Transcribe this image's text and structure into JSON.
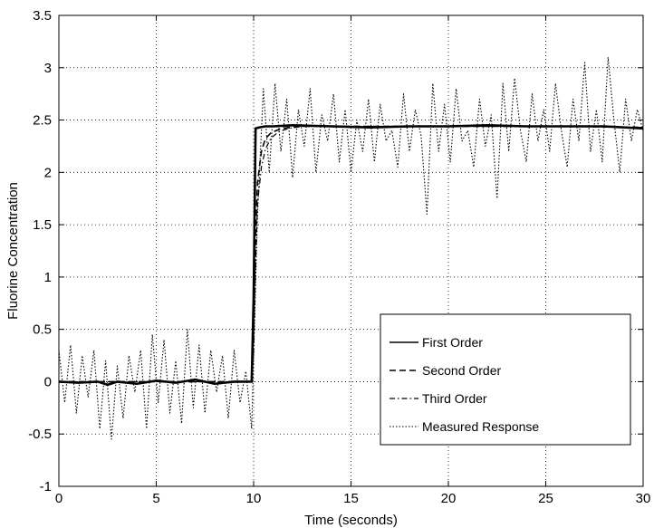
{
  "chart_data": {
    "type": "line",
    "title": "",
    "xlabel": "Time (seconds)",
    "ylabel": "Fluorine Concentration",
    "xlim": [
      0,
      30
    ],
    "ylim": [
      -1,
      3.5
    ],
    "x_ticks": [
      0,
      5,
      10,
      15,
      20,
      25,
      30
    ],
    "y_ticks": [
      -1,
      -0.5,
      0,
      0.5,
      1,
      1.5,
      2,
      2.5,
      3,
      3.5
    ],
    "x_tick_labels": [
      "0",
      "5",
      "10",
      "15",
      "20",
      "25",
      "30"
    ],
    "y_tick_labels": [
      "-1",
      "-0.5",
      "0",
      "0.5",
      "1",
      "1.5",
      "2",
      "2.5",
      "3",
      "3.5"
    ],
    "grid": true,
    "legend_position": "bottom-right",
    "series": [
      {
        "name": "First Order",
        "style": "solid",
        "x": [
          0,
          1,
          2,
          2.5,
          3,
          4,
          5,
          6,
          7,
          8,
          9,
          9.9,
          10.0,
          10.1,
          10.3,
          10.6,
          11,
          12,
          14,
          16,
          18,
          20,
          22,
          24,
          26,
          28,
          30
        ],
        "values": [
          0,
          -0.01,
          0,
          -0.03,
          0,
          -0.02,
          0.01,
          -0.01,
          0.02,
          -0.02,
          0,
          0,
          0.8,
          2.42,
          2.43,
          2.44,
          2.44,
          2.45,
          2.44,
          2.43,
          2.44,
          2.44,
          2.45,
          2.44,
          2.44,
          2.44,
          2.42
        ]
      },
      {
        "name": "Second Order",
        "style": "dashed",
        "x": [
          0,
          2,
          4,
          6,
          8,
          9.9,
          10.0,
          10.1,
          10.2,
          10.4,
          10.6,
          10.9,
          11.3,
          11.8,
          12.5,
          14,
          18,
          22,
          26,
          30
        ],
        "values": [
          0,
          0,
          0,
          0,
          0,
          0,
          0.5,
          1.4,
          1.9,
          2.2,
          2.32,
          2.38,
          2.41,
          2.43,
          2.44,
          2.44,
          2.44,
          2.44,
          2.44,
          2.43
        ]
      },
      {
        "name": "Third Order",
        "style": "dashdot",
        "x": [
          0,
          2,
          4,
          6,
          8,
          9.9,
          10.0,
          10.1,
          10.2,
          10.4,
          10.6,
          10.9,
          11.3,
          11.8,
          12.5,
          14,
          18,
          22,
          26,
          30
        ],
        "values": [
          0,
          0,
          0,
          0,
          0,
          0,
          0.3,
          1.1,
          1.7,
          2.05,
          2.22,
          2.33,
          2.39,
          2.42,
          2.44,
          2.44,
          2.44,
          2.44,
          2.44,
          2.43
        ]
      },
      {
        "name": "Measured Response",
        "style": "dotted",
        "x": [
          0,
          0.3,
          0.6,
          0.9,
          1.2,
          1.5,
          1.8,
          2.1,
          2.4,
          2.7,
          3.0,
          3.3,
          3.6,
          3.9,
          4.2,
          4.5,
          4.8,
          5.1,
          5.4,
          5.7,
          6.0,
          6.3,
          6.6,
          6.9,
          7.2,
          7.5,
          7.8,
          8.1,
          8.4,
          8.7,
          9.0,
          9.3,
          9.6,
          9.9,
          10.2,
          10.5,
          10.8,
          11.1,
          11.4,
          11.7,
          12.0,
          12.3,
          12.6,
          12.9,
          13.2,
          13.5,
          13.8,
          14.1,
          14.4,
          14.7,
          15.0,
          15.3,
          15.6,
          15.9,
          16.2,
          16.5,
          16.8,
          17.1,
          17.4,
          17.7,
          18.0,
          18.3,
          18.6,
          18.9,
          19.2,
          19.5,
          19.8,
          20.1,
          20.4,
          20.7,
          21.0,
          21.3,
          21.6,
          21.9,
          22.2,
          22.5,
          22.8,
          23.1,
          23.4,
          23.7,
          24.0,
          24.3,
          24.6,
          24.9,
          25.2,
          25.5,
          25.8,
          26.1,
          26.4,
          26.7,
          27.0,
          27.3,
          27.6,
          27.9,
          28.2,
          28.5,
          28.8,
          29.1,
          29.4,
          29.7,
          30.0
        ],
        "values": [
          0.3,
          -0.2,
          0.35,
          -0.3,
          0.25,
          -0.15,
          0.3,
          -0.45,
          0.2,
          -0.55,
          0.15,
          -0.35,
          0.25,
          -0.1,
          0.3,
          -0.45,
          0.45,
          -0.2,
          0.4,
          -0.3,
          0.2,
          -0.4,
          0.5,
          -0.25,
          0.35,
          -0.3,
          0.3,
          -0.1,
          0.25,
          -0.35,
          0.3,
          -0.2,
          0.1,
          -0.45,
          1.6,
          2.8,
          2.0,
          2.85,
          2.2,
          2.7,
          1.95,
          2.6,
          2.25,
          2.8,
          2.0,
          2.55,
          2.3,
          2.75,
          2.1,
          2.6,
          2.0,
          2.5,
          2.2,
          2.7,
          2.1,
          2.65,
          2.3,
          2.4,
          2.05,
          2.75,
          2.2,
          2.6,
          2.35,
          1.6,
          2.85,
          2.2,
          2.65,
          2.1,
          2.8,
          2.3,
          2.4,
          2.05,
          2.7,
          2.25,
          2.55,
          1.75,
          2.85,
          2.2,
          2.9,
          2.4,
          2.1,
          2.75,
          2.3,
          2.6,
          2.2,
          2.85,
          2.4,
          2.05,
          2.7,
          2.3,
          3.05,
          2.2,
          2.6,
          2.1,
          3.1,
          2.5,
          2.0,
          2.7,
          2.3,
          2.6,
          2.4
        ]
      }
    ]
  }
}
